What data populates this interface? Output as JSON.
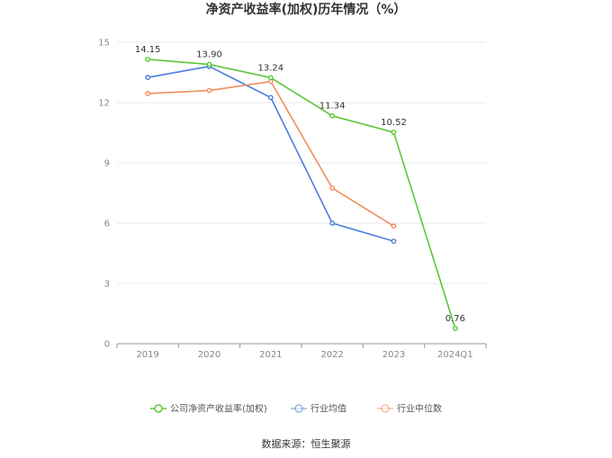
{
  "chart_data": {
    "type": "line",
    "title": "净资产收益率(加权)历年情况（%）",
    "xlabel": "",
    "ylabel": "",
    "categories": [
      "2019",
      "2020",
      "2021",
      "2022",
      "2023",
      "2024Q1"
    ],
    "ylim": [
      0,
      15
    ],
    "yticks": [
      0,
      3,
      6,
      9,
      12,
      15
    ],
    "grid": true,
    "legend_position": "bottom",
    "series": [
      {
        "name": "公司净资产收益率(加权)",
        "color": "#5ac739",
        "values": [
          14.15,
          13.9,
          13.24,
          11.34,
          10.52,
          0.76
        ],
        "labels": [
          "14.15",
          "13.90",
          "13.24",
          "11.34",
          "10.52",
          "0.76"
        ]
      },
      {
        "name": "行业均值",
        "color": "#4b7fdc",
        "values": [
          13.25,
          13.8,
          12.25,
          6.0,
          5.1,
          null
        ]
      },
      {
        "name": "行业中位数",
        "color": "#f28e5f",
        "values": [
          12.45,
          12.6,
          13.05,
          7.75,
          5.85,
          null
        ]
      }
    ]
  },
  "source_text": "数据来源：恒生聚源"
}
